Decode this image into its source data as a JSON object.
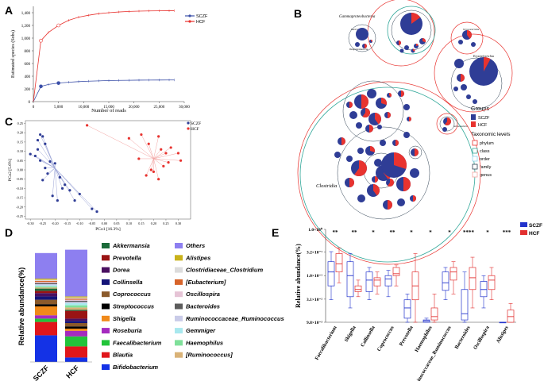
{
  "panel_letters": [
    "A",
    "B",
    "C",
    "D",
    "E"
  ],
  "chart_data": [
    {
      "panel": "A",
      "type": "line",
      "xlabel": "Number of reads",
      "ylabel": "Estimated species (Sobs)",
      "xlim": [
        0,
        30000
      ],
      "ylim": [
        0,
        1500
      ],
      "xticks": [
        0,
        5000,
        10000,
        15000,
        20000,
        25000,
        30000
      ],
      "xtick_labels": [
        "0",
        "5,000",
        "10,000",
        "15,000",
        "20,000",
        "25,000",
        "30,000"
      ],
      "yticks": [
        0,
        200,
        400,
        600,
        800,
        1000,
        1200,
        1400
      ],
      "ytick_labels": [
        "0",
        "200",
        "400",
        "600",
        "800",
        "1,000",
        "1,200",
        "1,400"
      ],
      "legend": [
        "SCZF",
        "HCF"
      ],
      "series": [
        {
          "name": "SCZF",
          "color": "#3b4fa8",
          "x": [
            0,
            1500,
            3000,
            5000,
            7000,
            9000,
            11000,
            13000,
            15000,
            17000,
            19000,
            21000,
            23000,
            25000,
            27000,
            28000
          ],
          "y": [
            0,
            240,
            270,
            292,
            305,
            315,
            322,
            327,
            331,
            334,
            336,
            338,
            339,
            340,
            341,
            341
          ]
        },
        {
          "name": "HCF",
          "color": "#e8332f",
          "x": [
            0,
            1500,
            3000,
            5000,
            7000,
            9000,
            11000,
            13000,
            15000,
            17000,
            19000,
            21000,
            23000,
            25000,
            27000,
            28000
          ],
          "y": [
            0,
            960,
            1090,
            1200,
            1280,
            1330,
            1360,
            1385,
            1400,
            1412,
            1420,
            1425,
            1428,
            1430,
            1432,
            1432
          ]
        }
      ]
    },
    {
      "panel": "C",
      "type": "scatter",
      "xlabel": "PCo1 [16.3%]",
      "ylabel": "PCo2 [5.6%]",
      "xlim": [
        -0.32,
        0.35
      ],
      "ylim": [
        -0.265,
        0.265
      ],
      "xticks": [
        -0.3,
        -0.25,
        -0.2,
        -0.15,
        -0.1,
        -0.05,
        0,
        0.05,
        0.1,
        0.15,
        0.2,
        0.25,
        0.3
      ],
      "xtick_labels": [
        "-0.30",
        "-0.25",
        "-0.20",
        "-0.15",
        "-0.10",
        "-0.05",
        "0.00",
        "0.05",
        "0.10",
        "0.15",
        "0.20",
        "0.25",
        "0.30"
      ],
      "yticks": [
        -0.25,
        -0.2,
        -0.15,
        -0.1,
        -0.05,
        0,
        0.05,
        0.1,
        0.15,
        0.2,
        0.25
      ],
      "ytick_labels": [
        "-0.25",
        "-0.20",
        "-0.15",
        "-0.10",
        "-0.05",
        "0.00",
        "0.05",
        "0.10",
        "0.15",
        "0.20",
        "0.25"
      ],
      "legend": [
        "SCZF",
        "HCF"
      ],
      "series": [
        {
          "name": "SCZF",
          "color": "#2f3d96",
          "centroid": [
            -0.2,
            0.01
          ],
          "x": [
            -0.26,
            -0.25,
            -0.27,
            -0.24,
            -0.3,
            -0.28,
            -0.26,
            -0.22,
            -0.2,
            -0.24,
            -0.23,
            -0.18,
            -0.25,
            -0.16,
            -0.14,
            -0.1,
            -0.05,
            -0.03,
            -0.12,
            -0.19,
            -0.21,
            -0.17,
            -0.27
          ],
          "y": [
            0.19,
            0.18,
            0.16,
            0.14,
            0.085,
            0.075,
            0.05,
            0.045,
            0.035,
            0.01,
            -0.02,
            -0.04,
            -0.055,
            -0.08,
            -0.11,
            -0.13,
            -0.21,
            -0.225,
            -0.165,
            -0.165,
            -0.14,
            -0.1,
            0.11
          ]
        },
        {
          "name": "HCF",
          "color": "#e8332f",
          "centroid": [
            0.2,
            0.06
          ],
          "x": [
            -0.07,
            0.1,
            0.15,
            0.18,
            0.22,
            0.23,
            0.25,
            0.27,
            0.3,
            0.31,
            0.26,
            0.24,
            0.2,
            0.17,
            0.14,
            0.19,
            0.22
          ],
          "y": [
            0.24,
            0.17,
            0.19,
            0.14,
            0.18,
            0.11,
            0.09,
            0.12,
            0.09,
            0.05,
            0.04,
            0.02,
            -0.01,
            -0.03,
            0.06,
            0.0,
            -0.05
          ]
        }
      ]
    },
    {
      "panel": "D",
      "type": "bar",
      "stacked": true,
      "ylabel": "Relative abundance(%)",
      "categories": [
        "SCZF",
        "HCF"
      ],
      "series": [
        {
          "name": "Bifidobacterium",
          "color": "#1432e6",
          "values": [
            24,
            4
          ]
        },
        {
          "name": "Blautia",
          "color": "#e0161b",
          "values": [
            12,
            10
          ]
        },
        {
          "name": "Faecalibacterium",
          "color": "#22c43a",
          "values": [
            3,
            9
          ]
        },
        {
          "name": "Roseburia",
          "color": "#a52bbf",
          "values": [
            3,
            5
          ]
        },
        {
          "name": "Shigella",
          "color": "#f08a1b",
          "values": [
            8,
            2
          ]
        },
        {
          "name": "Streptococcus",
          "color": "#000000",
          "values": [
            2,
            2
          ]
        },
        {
          "name": "Coprococcus",
          "color": "#8b5a2b",
          "values": [
            4,
            3
          ]
        },
        {
          "name": "Collinsella",
          "color": "#141478",
          "values": [
            3,
            2
          ]
        },
        {
          "name": "Dorea",
          "color": "#4a1060",
          "values": [
            3,
            2
          ]
        },
        {
          "name": "Prevotella",
          "color": "#9a1414",
          "values": [
            2,
            7
          ]
        },
        {
          "name": "Akkermansia",
          "color": "#1b6b3a",
          "values": [
            2,
            1
          ]
        },
        {
          "name": "[Ruminococcus]",
          "color": "#d9b277",
          "values": [
            1,
            2
          ]
        },
        {
          "name": "Haemophilus",
          "color": "#7fe09a",
          "values": [
            1,
            2
          ]
        },
        {
          "name": "Gemmiger",
          "color": "#a8e8ee",
          "values": [
            1,
            2
          ]
        },
        {
          "name": "Ruminococcaceae_Ruminococcus",
          "color": "#c9cbe8",
          "values": [
            1,
            1
          ]
        },
        {
          "name": "Bacteroides",
          "color": "#5c5c5c",
          "values": [
            1,
            1
          ]
        },
        {
          "name": "Oscillospira",
          "color": "#e6c4d6",
          "values": [
            1,
            1
          ]
        },
        {
          "name": "[Eubacterium]",
          "color": "#d7642a",
          "values": [
            1,
            1
          ]
        },
        {
          "name": "Clostridiaceae_Clostridium",
          "color": "#dcdcdc",
          "values": [
            1,
            1
          ]
        },
        {
          "name": "Alistipes",
          "color": "#c9b21a",
          "values": [
            1,
            1
          ]
        },
        {
          "name": "Others",
          "color": "#8d7ff0",
          "values": [
            23,
            42
          ]
        }
      ],
      "legend_left": [
        "Akkermansia",
        "Prevotella",
        "Dorea",
        "Collinsella",
        "Coprococcus",
        "Streptococcus",
        "Shigella",
        "Roseburia",
        "Faecalibacterium",
        "Blautia",
        "Bifidobacterium"
      ],
      "legend_right": [
        "Others",
        "Alistipes",
        "Clostridiaceae_Clostridium",
        "[Eubacterium]",
        "Oscillospira",
        "Bacteroides",
        "Ruminococcaceae_Ruminococcus",
        "Gemmiger",
        "Haemophilus",
        "[Ruminococcus]"
      ]
    },
    {
      "panel": "E",
      "type": "box",
      "ylabel": "Relative abundance(%)",
      "yscale": "log",
      "ylim": [
        0.0098,
        1.0
      ],
      "yticks": [
        0.0098,
        0.031,
        0.1,
        0.321,
        1.0
      ],
      "ytick_labels": [
        "9.8×10⁻³",
        "3.1×10⁻²",
        "1.0×10⁻¹",
        "3.2×10⁻¹",
        "1.0×10⁰"
      ],
      "legend": [
        "SCZF",
        "HCF"
      ],
      "categories": [
        "Faecalibacterium",
        "Shigella",
        "Collinsella",
        "Coprococcus",
        "Prevotella",
        "Haemophilus",
        "Ruminococcaceae_Ruminococcus",
        "Bacteroides",
        "Oscillospira",
        "Alistipes"
      ],
      "significance": [
        "**",
        "**",
        "*",
        "**",
        "*",
        "*",
        "*",
        "****",
        "*",
        "***"
      ],
      "series": [
        {
          "name": "SCZF",
          "color": "#2233cc",
          "boxes": [
            [
              0.03,
              0.06,
              0.12,
              0.2,
              0.33
            ],
            [
              0.02,
              0.035,
              0.1,
              0.2,
              0.3
            ],
            [
              0.03,
              0.045,
              0.08,
              0.12,
              0.15
            ],
            [
              0.035,
              0.06,
              0.085,
              0.1,
              0.13
            ],
            [
              0.0098,
              0.012,
              0.02,
              0.03,
              0.04
            ],
            [
              0.0098,
              0.0098,
              0.0105,
              0.011,
              0.012
            ],
            [
              0.03,
              0.048,
              0.07,
              0.12,
              0.15
            ],
            [
              0.0098,
              0.011,
              0.015,
              0.05,
              0.12
            ],
            [
              0.02,
              0.035,
              0.05,
              0.075,
              0.1
            ],
            [
              0.0098,
              0.0098,
              0.0098,
              0.0098,
              0.0098
            ]
          ]
        },
        {
          "name": "HCF",
          "color": "#e23030",
          "boxes": [
            [
              0.07,
              0.12,
              0.18,
              0.3,
              0.4
            ],
            [
              0.035,
              0.045,
              0.05,
              0.06,
              0.08
            ],
            [
              0.04,
              0.06,
              0.08,
              0.09,
              0.12
            ],
            [
              0.06,
              0.1,
              0.11,
              0.15,
              0.17
            ],
            [
              0.0098,
              0.03,
              0.06,
              0.12,
              0.3
            ],
            [
              0.0098,
              0.011,
              0.013,
              0.02,
              0.04
            ],
            [
              0.04,
              0.08,
              0.12,
              0.15,
              0.2
            ],
            [
              0.02,
              0.05,
              0.09,
              0.15,
              0.25
            ],
            [
              0.03,
              0.05,
              0.08,
              0.1,
              0.15
            ],
            [
              0.0098,
              0.0098,
              0.013,
              0.018,
              0.025
            ]
          ]
        }
      ]
    }
  ],
  "circle_pack": {
    "panel": "B",
    "labels": {
      "gamma": "Gammaproteobacteria",
      "clostridia": "Clostridia",
      "erysipelotrichia": "Erysipelotrichia",
      "small_label_1": "Bacteroidia",
      "small_label_2": "Betaproteobacteria",
      "small_label_3": "Verrucomicrobia",
      "small_label_4": "Actinobacteria"
    },
    "groups_title": "Groups",
    "groups": [
      {
        "name": "SCZF",
        "color": "#2f3d96"
      },
      {
        "name": "HCF",
        "color": "#e8332f"
      }
    ],
    "levels_title": "Taxonomic levels",
    "levels": [
      {
        "name": "phylum",
        "color": "#e8332f"
      },
      {
        "name": "class",
        "color": "#32a89a"
      },
      {
        "name": "order",
        "color": "#8fd3ec"
      },
      {
        "name": "family",
        "color": "#2c3e50"
      },
      {
        "name": "genus",
        "color": "#f4a6a0"
      }
    ]
  }
}
